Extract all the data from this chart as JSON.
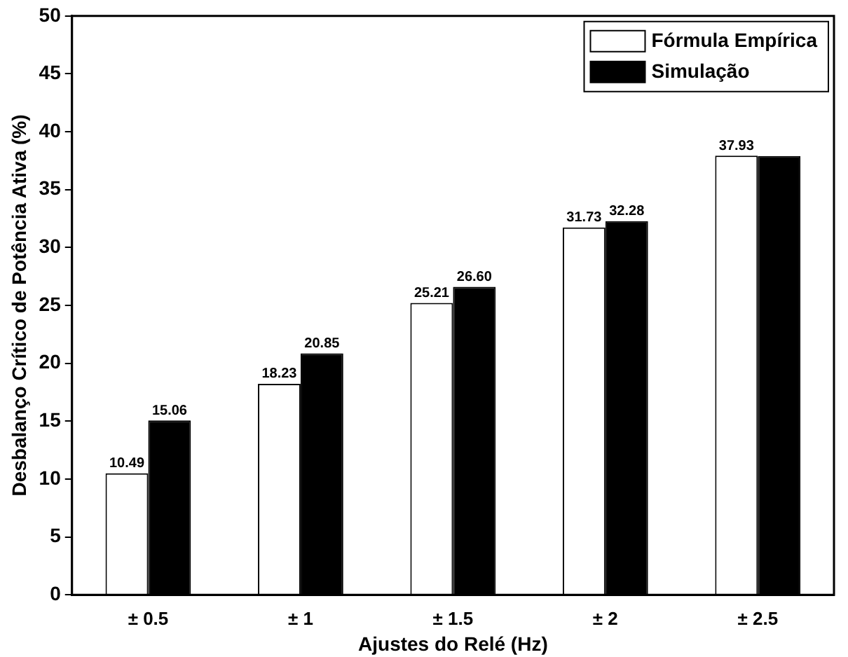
{
  "chart_data": {
    "type": "bar",
    "xlabel": "Ajustes do Relé (Hz)",
    "ylabel": "Desbalanço Crítico de Potência Ativa (%)",
    "categories": [
      "± 0.5",
      "± 1",
      "± 1.5",
      "± 2",
      "± 2.5"
    ],
    "series": [
      {
        "name": "Fórmula Empírica",
        "color": "#ffffff",
        "values": [
          10.49,
          18.23,
          25.21,
          31.73,
          37.93
        ],
        "value_labels": [
          "10.49",
          "18.23",
          "25.21",
          "31.73",
          "37.93"
        ]
      },
      {
        "name": "Simulação",
        "color": "#000000",
        "values": [
          15.06,
          20.85,
          26.6,
          32.28,
          37.9
        ],
        "value_labels": [
          "15.06",
          "20.85",
          "26.60",
          "32.28",
          null
        ]
      }
    ],
    "ylim": [
      0,
      50
    ],
    "yticks": [
      0,
      5,
      10,
      15,
      20,
      25,
      30,
      35,
      40,
      45,
      50
    ],
    "grid": false,
    "legend": "top right"
  }
}
